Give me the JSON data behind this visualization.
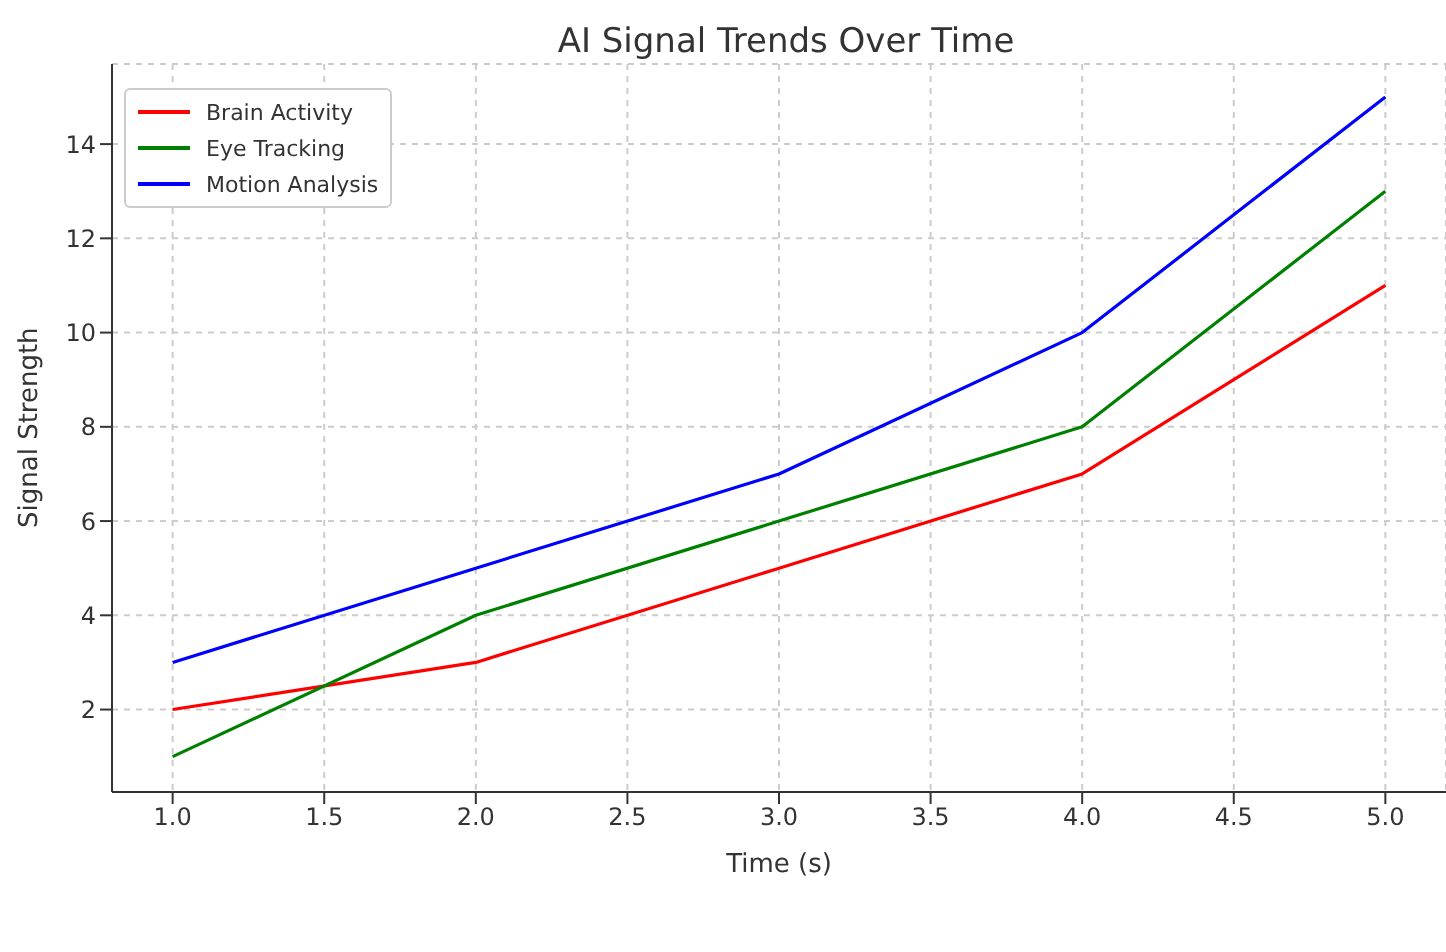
{
  "chart_data": {
    "type": "line",
    "title": "AI Signal Trends Over Time",
    "xlabel": "Time (s)",
    "ylabel": "Signal Strength",
    "x": [
      1,
      2,
      3,
      4,
      5
    ],
    "series": [
      {
        "name": "Brain Activity",
        "color": "#ff0000",
        "values": [
          2,
          3,
          5,
          7,
          11
        ]
      },
      {
        "name": "Eye Tracking",
        "color": "#008000",
        "values": [
          1,
          4,
          6,
          8,
          13
        ]
      },
      {
        "name": "Motion Analysis",
        "color": "#0000ff",
        "values": [
          3,
          5,
          7,
          10,
          15
        ]
      }
    ],
    "xlim": [
      0.8,
      5.2
    ],
    "ylim": [
      0.25,
      15.7
    ],
    "xticks": [
      {
        "value": 1,
        "label": "1.0"
      },
      {
        "value": 1.5,
        "label": "1.5"
      },
      {
        "value": 2,
        "label": "2.0"
      },
      {
        "value": 2.5,
        "label": "2.5"
      },
      {
        "value": 3,
        "label": "3.0"
      },
      {
        "value": 3.5,
        "label": "3.5"
      },
      {
        "value": 4,
        "label": "4.0"
      },
      {
        "value": 4.5,
        "label": "4.5"
      },
      {
        "value": 5,
        "label": "5.0"
      }
    ],
    "yticks": [
      2,
      4,
      6,
      8,
      10,
      12,
      14
    ],
    "grid": true,
    "legend": "top left",
    "marker": "none",
    "line_style": "solid"
  }
}
